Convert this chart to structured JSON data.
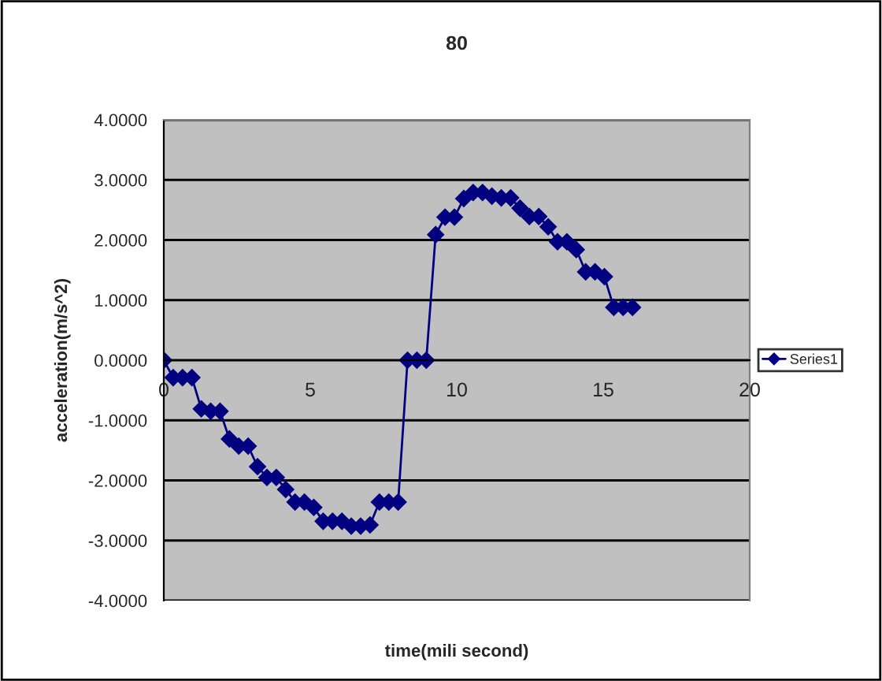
{
  "chart_data": {
    "type": "line",
    "title": "80",
    "xlabel": "time(mili second)",
    "ylabel": "acceleration(m/s^2)",
    "x": [
      0,
      0.32,
      0.64,
      0.96,
      1.28,
      1.6,
      1.92,
      2.24,
      2.56,
      2.88,
      3.2,
      3.52,
      3.84,
      4.16,
      4.48,
      4.8,
      5.12,
      5.44,
      5.76,
      6.08,
      6.4,
      6.72,
      7.04,
      7.36,
      7.68,
      8.0,
      8.32,
      8.64,
      8.96,
      9.28,
      9.6,
      9.92,
      10.24,
      10.56,
      10.88,
      11.2,
      11.52,
      11.84,
      12.16,
      12.48,
      12.8,
      13.12,
      13.44,
      13.76,
      14.08,
      14.4,
      14.72,
      15.04,
      15.36,
      15.68,
      16.0
    ],
    "series": [
      {
        "name": "Series1",
        "color": "#000080",
        "values": [
          0,
          -0.29,
          -0.29,
          -0.29,
          -0.81,
          -0.85,
          -0.85,
          -1.31,
          -1.43,
          -1.43,
          -1.77,
          -1.95,
          -1.95,
          -2.15,
          -2.36,
          -2.36,
          -2.45,
          -2.68,
          -2.68,
          -2.68,
          -2.76,
          -2.76,
          -2.74,
          -2.36,
          -2.36,
          -2.36,
          0,
          0,
          0,
          2.09,
          2.38,
          2.38,
          2.69,
          2.79,
          2.79,
          2.73,
          2.7,
          2.7,
          2.53,
          2.39,
          2.39,
          2.22,
          1.97,
          1.97,
          1.84,
          1.47,
          1.47,
          1.39,
          0.88,
          0.88,
          0.88
        ]
      }
    ],
    "xlim": [
      0,
      20
    ],
    "xticks": [
      0,
      5,
      10,
      15,
      20
    ],
    "ylim": [
      -4,
      4
    ],
    "yticks": [
      {
        "value": -4,
        "label": "-4.0000"
      },
      {
        "value": -3,
        "label": "-3.0000"
      },
      {
        "value": -2,
        "label": "-2.0000"
      },
      {
        "value": -1,
        "label": "-1.0000"
      },
      {
        "value": 0,
        "label": "0.0000"
      },
      {
        "value": 1,
        "label": "1.0000"
      },
      {
        "value": 2,
        "label": "2.0000"
      },
      {
        "value": 3,
        "label": "3.0000"
      },
      {
        "value": 4,
        "label": "4.0000"
      }
    ],
    "grid": "y",
    "legend": "right",
    "marker": "diamond",
    "line_style": "solid"
  }
}
